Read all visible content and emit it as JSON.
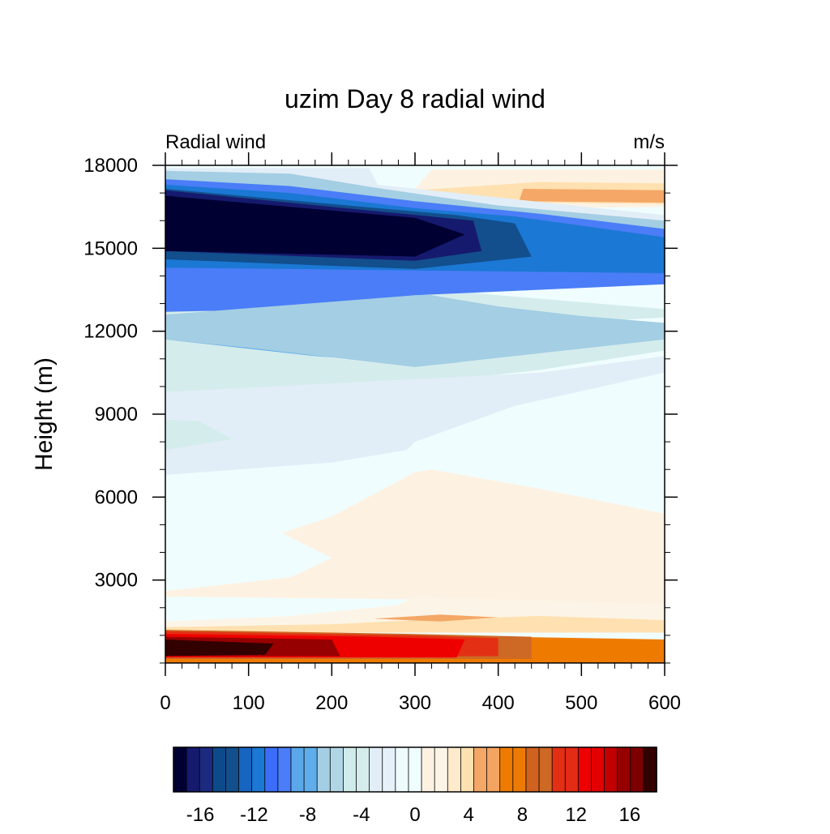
{
  "chart_data": {
    "type": "contour",
    "title": "uzim Day 8 radial wind",
    "left_string": "Radial wind",
    "right_string": "m/s",
    "xlabel": "",
    "ylabel": "Height (m)",
    "xlim": [
      0,
      600
    ],
    "ylim": [
      0,
      18000
    ],
    "x_ticks": [
      0,
      100,
      200,
      300,
      400,
      500,
      600
    ],
    "x_tick_labels": [
      "0",
      "100",
      "200",
      "300",
      "400",
      "500",
      "600"
    ],
    "y_ticks": [
      3000,
      6000,
      9000,
      12000,
      15000,
      18000
    ],
    "y_tick_labels": [
      "3000",
      "6000",
      "9000",
      "12000",
      "15000",
      "18000"
    ],
    "grid": false,
    "colorbar": {
      "position": "bottom",
      "levels": [
        -18,
        -17,
        -16,
        -15,
        -14,
        -13,
        -12,
        -11,
        -10,
        -9,
        -8,
        -7,
        -6,
        -5,
        -4,
        -3,
        -2,
        -1,
        0,
        1,
        2,
        3,
        4,
        5,
        6,
        7,
        8,
        9,
        10,
        11,
        12,
        13,
        14,
        15,
        16,
        17,
        18
      ],
      "colors": [
        "#000033",
        "#161a6e",
        "#1c2a80",
        "#0d4a8a",
        "#124f8c",
        "#1665c1",
        "#1b78d4",
        "#3c6dfa",
        "#4a7df7",
        "#5aa8ea",
        "#5fadea",
        "#a4cee3",
        "#b0d6e6",
        "#d0ebeb",
        "#d4ecec",
        "#e2eef7",
        "#e6f0f8",
        "#eefbfd",
        "#f0fdff",
        "#fdf2e2",
        "#fcf5e7",
        "#ffeacb",
        "#ffe0b0",
        "#f4a766",
        "#f3a460",
        "#ee7b00",
        "#ec7b06",
        "#cf621e",
        "#cd6825",
        "#e33014",
        "#e32b15",
        "#ef0000",
        "#e30000",
        "#c20000",
        "#960000",
        "#7d0000",
        "#330000"
      ],
      "tick_values": [
        -16,
        -12,
        -8,
        -4,
        0,
        4,
        8,
        12,
        16
      ],
      "tick_labels": [
        "-16",
        "-12",
        "-8",
        "-4",
        "0",
        "4",
        "8",
        "12",
        "16"
      ]
    },
    "regions": [
      {
        "name": "upper-outflow-tongue",
        "value": 0.5,
        "color": "#fdf2e2",
        "points": [
          [
            290,
            16800
          ],
          [
            320,
            17850
          ],
          [
            600,
            17850
          ],
          [
            600,
            16500
          ],
          [
            450,
            16450
          ],
          [
            330,
            16500
          ]
        ]
      },
      {
        "name": "upper-outflow-core",
        "value": 2.5,
        "color": "#ffe0b0",
        "points": [
          [
            300,
            17100
          ],
          [
            450,
            17400
          ],
          [
            600,
            17350
          ],
          [
            600,
            16600
          ],
          [
            450,
            16650
          ],
          [
            350,
            16850
          ]
        ]
      },
      {
        "name": "upper-outflow-max",
        "value": 5,
        "color": "#f4a766",
        "points": [
          [
            425,
            16700
          ],
          [
            600,
            16650
          ],
          [
            600,
            17100
          ],
          [
            430,
            17150
          ]
        ]
      },
      {
        "name": "upper-inflow-edge",
        "value": -2,
        "color": "#e2eef7",
        "points": [
          [
            0,
            17900
          ],
          [
            245,
            17900
          ],
          [
            255,
            17300
          ],
          [
            600,
            16200
          ],
          [
            600,
            15300
          ],
          [
            350,
            15400
          ],
          [
            0,
            15500
          ]
        ]
      },
      {
        "name": "upper-inflow-outer",
        "value": -5,
        "color": "#a4cee3",
        "points": [
          [
            0,
            17800
          ],
          [
            150,
            17700
          ],
          [
            250,
            17200
          ],
          [
            400,
            16550
          ],
          [
            600,
            16000
          ],
          [
            600,
            13700
          ],
          [
            0,
            14300
          ]
        ]
      },
      {
        "name": "upper-inflow-strong",
        "value": -10,
        "color": "#4a7df7",
        "points": [
          [
            0,
            17500
          ],
          [
            150,
            17250
          ],
          [
            300,
            16700
          ],
          [
            450,
            16250
          ],
          [
            600,
            15700
          ],
          [
            600,
            14000
          ],
          [
            0,
            13900
          ]
        ]
      },
      {
        "name": "upper-inflow-layer",
        "value": -13,
        "color": "#1b78d4",
        "points": [
          [
            0,
            17300
          ],
          [
            150,
            17000
          ],
          [
            300,
            16450
          ],
          [
            420,
            16150
          ],
          [
            600,
            15400
          ],
          [
            600,
            14100
          ],
          [
            300,
            14200
          ],
          [
            0,
            14300
          ]
        ]
      },
      {
        "name": "upper-inflow-dark",
        "value": -15,
        "color": "#124f8c",
        "points": [
          [
            0,
            17150
          ],
          [
            200,
            16600
          ],
          [
            350,
            16200
          ],
          [
            420,
            15900
          ],
          [
            440,
            14700
          ],
          [
            300,
            14250
          ],
          [
            0,
            14600
          ]
        ]
      },
      {
        "name": "upper-inflow-deep",
        "value": -17,
        "color": "#161a6e",
        "points": [
          [
            0,
            17100
          ],
          [
            200,
            16500
          ],
          [
            370,
            16000
          ],
          [
            380,
            14900
          ],
          [
            300,
            14550
          ],
          [
            0,
            14900
          ]
        ]
      },
      {
        "name": "upper-inflow-core",
        "value": -18,
        "color": "#000033",
        "points": [
          [
            0,
            16900
          ],
          [
            150,
            16500
          ],
          [
            300,
            16100
          ],
          [
            360,
            15500
          ],
          [
            300,
            14700
          ],
          [
            0,
            14900
          ]
        ]
      },
      {
        "name": "mid-inflow-light",
        "value": -3,
        "color": "#d4ecec",
        "points": [
          [
            0,
            12200
          ],
          [
            300,
            12000
          ],
          [
            600,
            12500
          ],
          [
            600,
            12800
          ],
          [
            400,
            13300
          ],
          [
            300,
            13600
          ],
          [
            0,
            13700
          ]
        ]
      },
      {
        "name": "mid-inflow-band",
        "value": -9,
        "color": "#4a7df7",
        "points": [
          [
            0,
            13500
          ],
          [
            0,
            12700
          ],
          [
            150,
            12800
          ],
          [
            300,
            13300
          ],
          [
            600,
            13700
          ],
          [
            600,
            14000
          ],
          [
            0,
            14100
          ]
        ]
      },
      {
        "name": "mid-inflow-core",
        "value": -8,
        "color": "#5fadea",
        "points": [
          [
            0,
            12600
          ],
          [
            150,
            12650
          ],
          [
            300,
            13300
          ],
          [
            320,
            13300
          ],
          [
            410,
            12000
          ],
          [
            350,
            10800
          ],
          [
            300,
            10800
          ],
          [
            100,
            11300
          ],
          [
            0,
            11700
          ]
        ]
      },
      {
        "name": "mid-inflow-outer",
        "value": -6,
        "color": "#a4cee3",
        "points": [
          [
            0,
            11700
          ],
          [
            100,
            11400
          ],
          [
            300,
            10700
          ],
          [
            600,
            11700
          ],
          [
            600,
            12300
          ],
          [
            500,
            12550
          ],
          [
            400,
            12900
          ],
          [
            320,
            13300
          ],
          [
            300,
            13300
          ],
          [
            0,
            12600
          ]
        ]
      },
      {
        "name": "mid-inflow-edge",
        "value": -4,
        "color": "#d4ecec",
        "points": [
          [
            0,
            9800
          ],
          [
            300,
            10100
          ],
          [
            450,
            10600
          ],
          [
            600,
            11300
          ],
          [
            600,
            11700
          ],
          [
            300,
            10700
          ],
          [
            0,
            11700
          ]
        ]
      },
      {
        "name": "mid-inflow-weak",
        "value": -2,
        "color": "#e2eef7",
        "points": [
          [
            0,
            6800
          ],
          [
            200,
            7250
          ],
          [
            290,
            7700
          ],
          [
            300,
            8000
          ],
          [
            420,
            9300
          ],
          [
            600,
            10500
          ],
          [
            600,
            11100
          ],
          [
            450,
            10500
          ],
          [
            0,
            9800
          ]
        ]
      },
      {
        "name": "mid-inflow-pocket",
        "value": -3.5,
        "color": "#d4ecec",
        "points": [
          [
            0,
            7700
          ],
          [
            80,
            8100
          ],
          [
            40,
            8750
          ],
          [
            0,
            8800
          ]
        ]
      },
      {
        "name": "low-weak-outflow",
        "value": 0.5,
        "color": "#fdf2e2",
        "points": [
          [
            0,
            2400
          ],
          [
            0,
            2600
          ],
          [
            150,
            3100
          ],
          [
            200,
            3800
          ],
          [
            140,
            4700
          ],
          [
            200,
            5300
          ],
          [
            300,
            6900
          ],
          [
            320,
            7000
          ],
          [
            450,
            6300
          ],
          [
            600,
            5400
          ],
          [
            600,
            2100
          ],
          [
            300,
            2300
          ]
        ]
      },
      {
        "name": "low-outflow-band",
        "value": 1.5,
        "color": "#fcf5e7",
        "points": [
          [
            0,
            1500
          ],
          [
            150,
            1700
          ],
          [
            280,
            2100
          ],
          [
            300,
            2400
          ],
          [
            600,
            2100
          ],
          [
            600,
            1200
          ],
          [
            0,
            1300
          ]
        ]
      },
      {
        "name": "low-outflow-layer",
        "value": 3,
        "color": "#ffe0b0",
        "points": [
          [
            0,
            1300
          ],
          [
            200,
            1400
          ],
          [
            300,
            1550
          ],
          [
            450,
            1700
          ],
          [
            600,
            1550
          ],
          [
            600,
            1100
          ],
          [
            0,
            1100
          ]
        ]
      },
      {
        "name": "low-outflow-lens",
        "value": 5,
        "color": "#f4a766",
        "points": [
          [
            250,
            1600
          ],
          [
            330,
            1750
          ],
          [
            400,
            1650
          ],
          [
            330,
            1500
          ]
        ]
      },
      {
        "name": "boundary-layer-mid",
        "value": 8,
        "color": "#ee7b00",
        "points": [
          [
            0,
            1150
          ],
          [
            300,
            1000
          ],
          [
            600,
            850
          ],
          [
            600,
            0
          ],
          [
            0,
            0
          ]
        ]
      },
      {
        "name": "boundary-layer-strong",
        "value": 11,
        "color": "#cd6825",
        "points": [
          [
            0,
            1200
          ],
          [
            300,
            1050
          ],
          [
            440,
            950
          ],
          [
            440,
            150
          ],
          [
            0,
            150
          ]
        ]
      },
      {
        "name": "boundary-layer-jet",
        "value": 13,
        "color": "#e33014",
        "points": [
          [
            0,
            1150
          ],
          [
            300,
            1000
          ],
          [
            400,
            900
          ],
          [
            400,
            250
          ],
          [
            0,
            200
          ]
        ]
      },
      {
        "name": "boundary-layer-max",
        "value": 15,
        "color": "#ef0000",
        "points": [
          [
            0,
            1050
          ],
          [
            250,
            950
          ],
          [
            360,
            850
          ],
          [
            350,
            200
          ],
          [
            0,
            200
          ]
        ]
      },
      {
        "name": "boundary-layer-peak",
        "value": 16,
        "color": "#960000",
        "points": [
          [
            0,
            950
          ],
          [
            200,
            850
          ],
          [
            210,
            250
          ],
          [
            0,
            250
          ]
        ]
      },
      {
        "name": "boundary-layer-core",
        "value": 18,
        "color": "#330000",
        "points": [
          [
            0,
            850
          ],
          [
            130,
            700
          ],
          [
            120,
            300
          ],
          [
            0,
            250
          ]
        ]
      }
    ]
  }
}
